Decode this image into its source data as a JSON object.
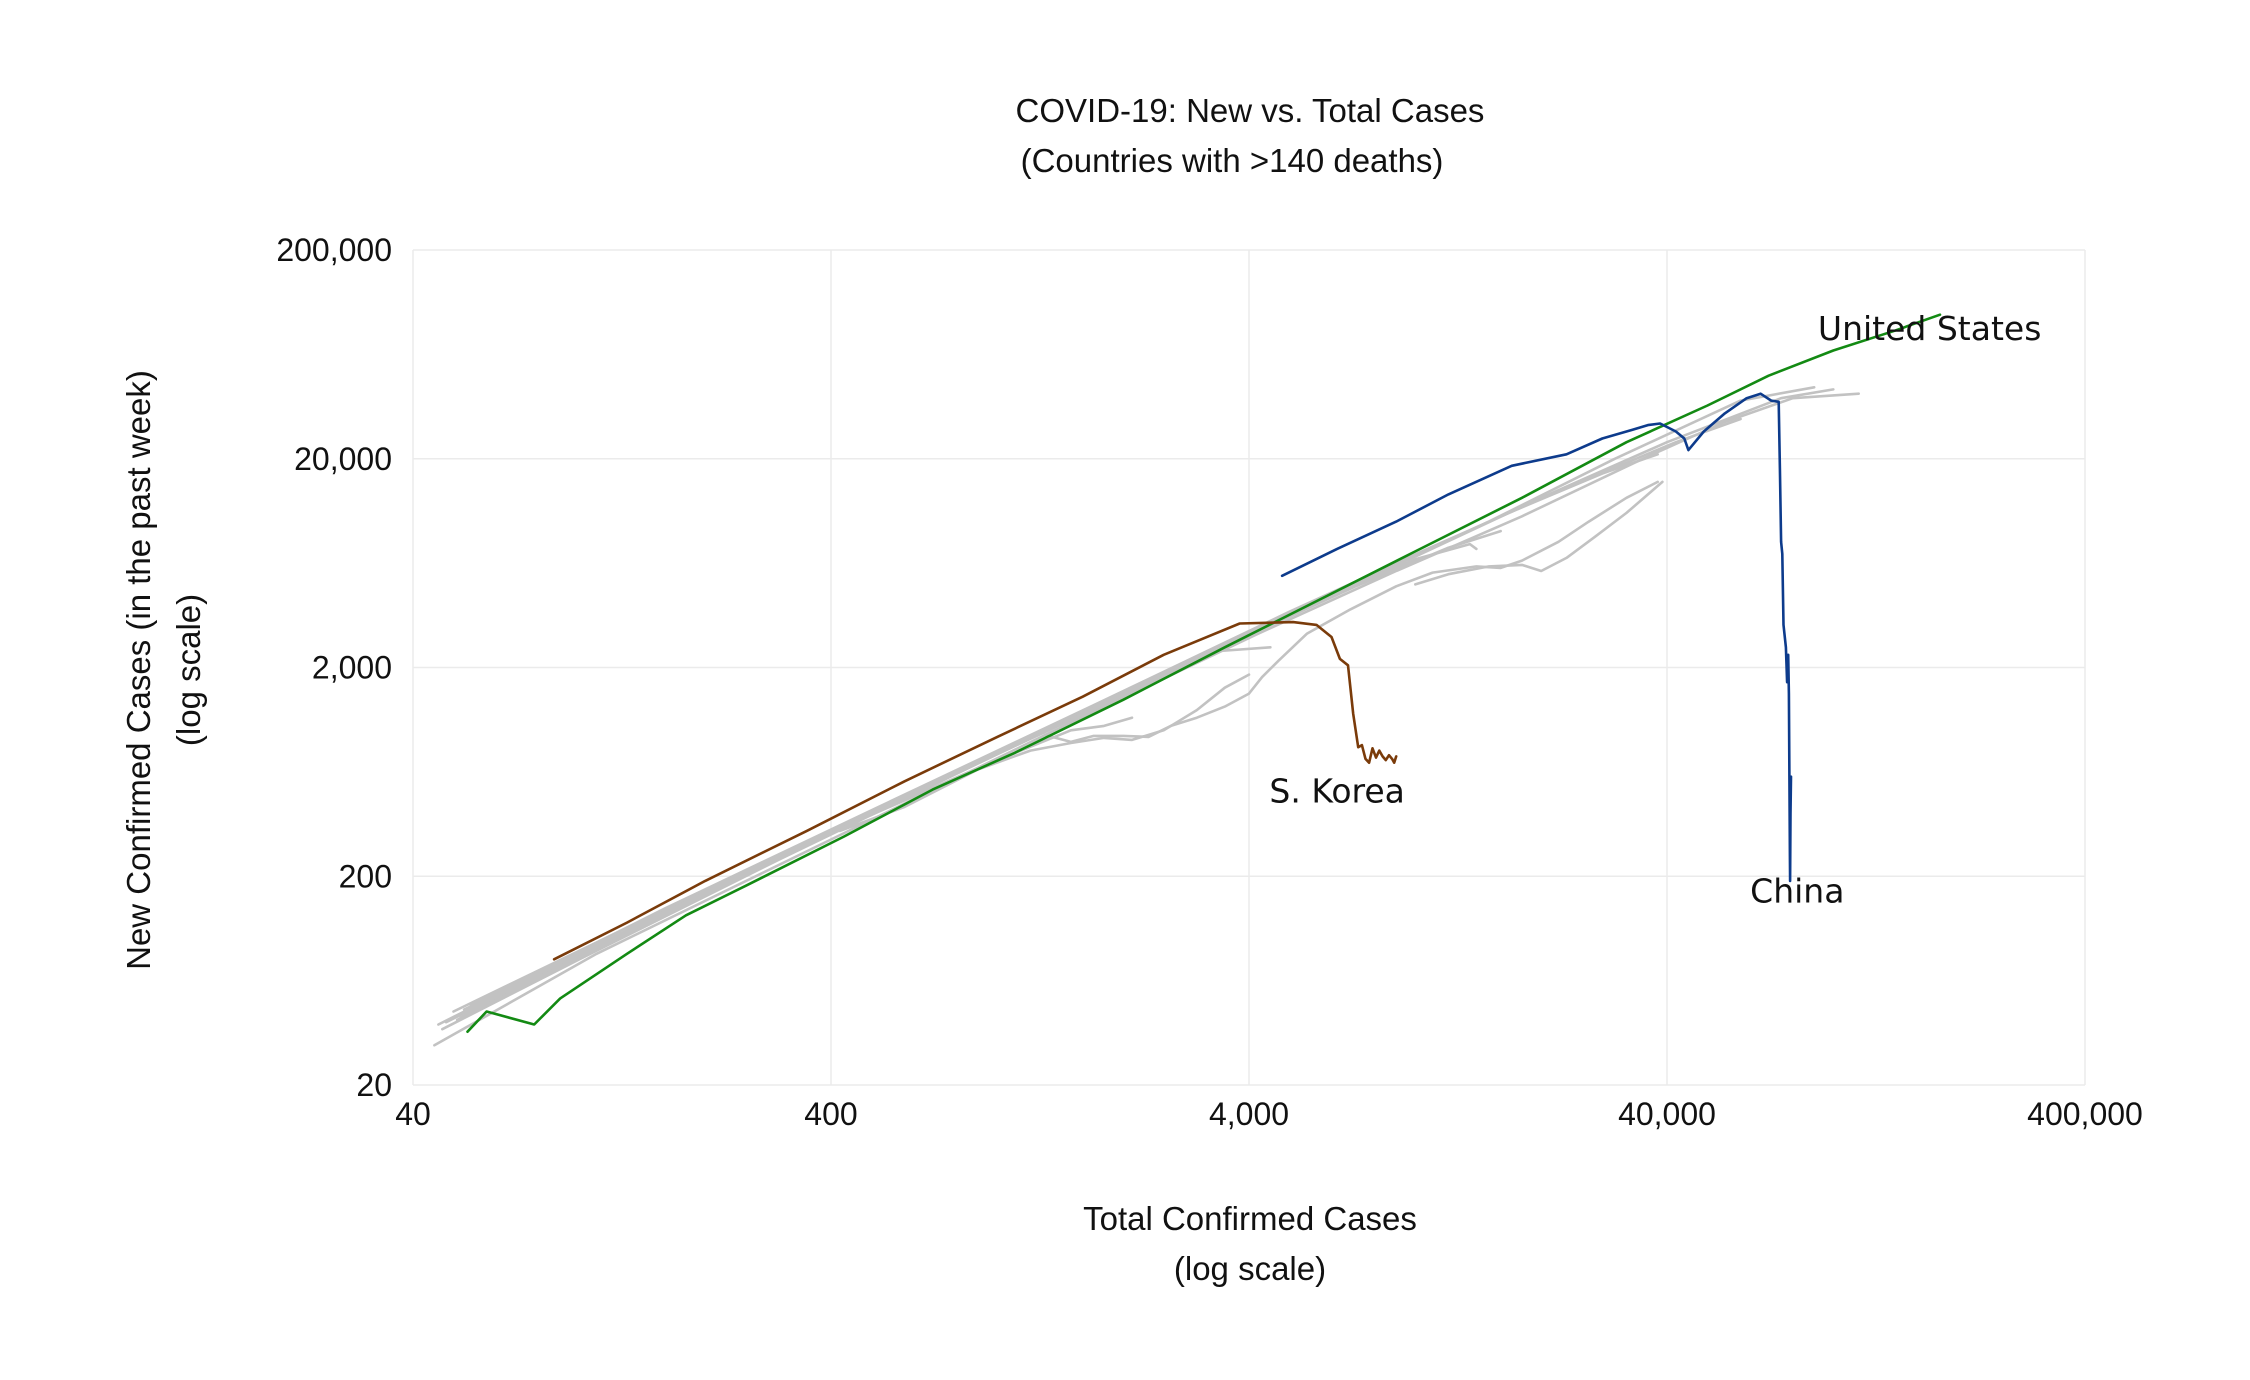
{
  "chart_data": {
    "type": "line",
    "title": "COVID-19: New vs. Total Cases",
    "subtitle": "(Countries with >140 deaths)",
    "xlabel": "Total Confirmed Cases",
    "xlabel_note": "(log scale)",
    "ylabel": "New Confirmed Cases (in the past week)",
    "ylabel_note": "(log scale)",
    "x_scale": "log",
    "y_scale": "log",
    "xlim": [
      40,
      400000
    ],
    "ylim": [
      20,
      200000
    ],
    "x_ticks": [
      {
        "value": 40,
        "label": "40"
      },
      {
        "value": 400,
        "label": "400"
      },
      {
        "value": 4000,
        "label": "4,000"
      },
      {
        "value": 40000,
        "label": "40,000"
      },
      {
        "value": 400000,
        "label": "400,000"
      }
    ],
    "y_ticks": [
      {
        "value": 20,
        "label": "20"
      },
      {
        "value": 200,
        "label": "200"
      },
      {
        "value": 2000,
        "label": "2,000"
      },
      {
        "value": 20000,
        "label": "20,000"
      },
      {
        "value": 200000,
        "label": "200,000"
      }
    ],
    "grid": true,
    "legend": "none",
    "colors": {
      "United States": "#138a13",
      "China": "#0d3b8c",
      "S. Korea": "#7a3b0a",
      "other": "#c2c2c2"
    },
    "series": [
      {
        "name": "United States",
        "label_value": {
          "x": 170000,
          "y": 74000
        },
        "points": [
          [
            54,
            36
          ],
          [
            60,
            45
          ],
          [
            78,
            39
          ],
          [
            90,
            52
          ],
          [
            130,
            85
          ],
          [
            180,
            130
          ],
          [
            250,
            180
          ],
          [
            430,
            310
          ],
          [
            700,
            520
          ],
          [
            1100,
            780
          ],
          [
            2000,
            1400
          ],
          [
            3500,
            2500
          ],
          [
            6000,
            4300
          ],
          [
            10000,
            7200
          ],
          [
            18000,
            13000
          ],
          [
            32000,
            24000
          ],
          [
            50000,
            36000
          ],
          [
            70000,
            50000
          ],
          [
            100000,
            66000
          ],
          [
            140000,
            82000
          ],
          [
            180000,
            98000
          ]
        ]
      },
      {
        "name": "China",
        "label_value": {
          "x": 82000,
          "y": 150
        },
        "points": [
          [
            4800,
            5500
          ],
          [
            6500,
            7400
          ],
          [
            9000,
            10000
          ],
          [
            12000,
            13500
          ],
          [
            17000,
            18500
          ],
          [
            23000,
            21000
          ],
          [
            28000,
            25000
          ],
          [
            33000,
            27500
          ],
          [
            36000,
            29000
          ],
          [
            38500,
            29500
          ],
          [
            42000,
            27000
          ],
          [
            44000,
            25000
          ],
          [
            45000,
            22000
          ],
          [
            49000,
            27000
          ],
          [
            55000,
            33000
          ],
          [
            62000,
            39000
          ],
          [
            67000,
            41000
          ],
          [
            71000,
            38000
          ],
          [
            74000,
            37500
          ],
          [
            74500,
            18000
          ],
          [
            75000,
            8000
          ],
          [
            75500,
            7000
          ],
          [
            76000,
            3200
          ],
          [
            77000,
            2500
          ],
          [
            77500,
            1700
          ],
          [
            78000,
            2300
          ],
          [
            78300,
            1500
          ],
          [
            78500,
            600
          ],
          [
            78700,
            250
          ],
          [
            78800,
            190
          ],
          [
            79000,
            400
          ],
          [
            79200,
            600
          ]
        ]
      },
      {
        "name": "S. Korea",
        "label_value": {
          "x": 6500,
          "y": 450
        },
        "points": [
          [
            87,
            80
          ],
          [
            130,
            120
          ],
          [
            200,
            190
          ],
          [
            350,
            330
          ],
          [
            600,
            570
          ],
          [
            1000,
            930
          ],
          [
            1600,
            1450
          ],
          [
            2500,
            2300
          ],
          [
            3800,
            3250
          ],
          [
            5100,
            3300
          ],
          [
            5800,
            3200
          ],
          [
            6300,
            2800
          ],
          [
            6600,
            2200
          ],
          [
            6900,
            2050
          ],
          [
            7100,
            1200
          ],
          [
            7300,
            830
          ],
          [
            7450,
            850
          ],
          [
            7600,
            730
          ],
          [
            7750,
            700
          ],
          [
            7900,
            820
          ],
          [
            8050,
            740
          ],
          [
            8200,
            800
          ],
          [
            8350,
            750
          ],
          [
            8500,
            720
          ],
          [
            8650,
            760
          ],
          [
            8800,
            730
          ],
          [
            8900,
            700
          ],
          [
            9000,
            750
          ]
        ]
      },
      {
        "group": "other",
        "points": [
          [
            47,
            37
          ],
          [
            100,
            80
          ],
          [
            300,
            240
          ],
          [
            1000,
            770
          ],
          [
            3000,
            2200
          ],
          [
            6500,
            4600
          ],
          [
            15000,
            10000
          ],
          [
            30000,
            20000
          ],
          [
            60000,
            38000
          ],
          [
            90000,
            44000
          ]
        ]
      },
      {
        "group": "other",
        "points": [
          [
            50,
            45
          ],
          [
            150,
            130
          ],
          [
            500,
            410
          ],
          [
            1500,
            1150
          ],
          [
            4000,
            2950
          ],
          [
            10000,
            6800
          ],
          [
            20000,
            13000
          ],
          [
            40000,
            24000
          ],
          [
            75000,
            39000
          ],
          [
            100000,
            43000
          ]
        ]
      },
      {
        "group": "other",
        "points": [
          [
            45,
            31
          ],
          [
            110,
            85
          ],
          [
            400,
            300
          ],
          [
            1300,
            950
          ],
          [
            4200,
            2900
          ],
          [
            9000,
            5800
          ],
          [
            18000,
            10600
          ],
          [
            35000,
            20000
          ],
          [
            55000,
            30000
          ],
          [
            80000,
            39000
          ],
          [
            115000,
            41000
          ]
        ]
      },
      {
        "group": "other",
        "points": [
          [
            55,
            48
          ],
          [
            160,
            140
          ],
          [
            520,
            430
          ],
          [
            1700,
            1320
          ],
          [
            5000,
            3700
          ],
          [
            11000,
            7600
          ],
          [
            22000,
            14000
          ],
          [
            42000,
            24000
          ],
          [
            60000,
            31000
          ]
        ]
      },
      {
        "group": "other",
        "points": [
          [
            48,
            40
          ],
          [
            120,
            100
          ],
          [
            400,
            330
          ],
          [
            1200,
            930
          ],
          [
            3500,
            2600
          ],
          [
            8000,
            5600
          ],
          [
            16000,
            10600
          ],
          [
            28000,
            17000
          ],
          [
            38000,
            21000
          ]
        ]
      },
      {
        "group": "other",
        "points": [
          [
            52,
            42
          ],
          [
            130,
            108
          ],
          [
            430,
            350
          ],
          [
            1250,
            950
          ],
          [
            3600,
            2600
          ],
          [
            7200,
            4900
          ],
          [
            12000,
            7500
          ],
          [
            16000,
            9000
          ]
        ]
      },
      {
        "group": "other",
        "points": [
          [
            46,
            39
          ],
          [
            100,
            85
          ],
          [
            350,
            290
          ],
          [
            1000,
            770
          ],
          [
            2500,
            1800
          ],
          [
            5500,
            3900
          ],
          [
            10000,
            6600
          ],
          [
            13500,
            7800
          ],
          [
            14000,
            7400
          ]
        ]
      },
      {
        "group": "other",
        "points": [
          [
            51,
            41
          ],
          [
            140,
            115
          ],
          [
            450,
            360
          ],
          [
            1100,
            840
          ],
          [
            2200,
            1600
          ],
          [
            3400,
            2400
          ],
          [
            4500,
            2500
          ]
        ]
      },
      {
        "group": "other",
        "points": [
          [
            53,
            46
          ],
          [
            145,
            122
          ],
          [
            480,
            380
          ],
          [
            900,
            660
          ],
          [
            1500,
            1000
          ],
          [
            1800,
            1050
          ],
          [
            2100,
            1150
          ]
        ]
      },
      {
        "group": "other",
        "points": [
          [
            420,
            330
          ],
          [
            600,
            430
          ],
          [
            900,
            650
          ],
          [
            1200,
            800
          ],
          [
            1500,
            870
          ],
          [
            1800,
            920
          ],
          [
            2100,
            900
          ],
          [
            2500,
            1000
          ],
          [
            3000,
            1250
          ],
          [
            3500,
            1600
          ],
          [
            4000,
            1850
          ]
        ]
      },
      {
        "group": "other",
        "points": [
          [
            1300,
            950
          ],
          [
            1500,
            880
          ],
          [
            1700,
            940
          ],
          [
            2000,
            940
          ],
          [
            2300,
            930
          ],
          [
            2600,
            1050
          ],
          [
            3000,
            1150
          ],
          [
            3500,
            1300
          ],
          [
            4000,
            1500
          ],
          [
            4300,
            1800
          ],
          [
            4700,
            2150
          ],
          [
            5500,
            2900
          ],
          [
            7000,
            3800
          ],
          [
            9000,
            4900
          ],
          [
            11000,
            5700
          ],
          [
            14000,
            6100
          ],
          [
            16000,
            6000
          ],
          [
            18000,
            6500
          ],
          [
            22000,
            8000
          ],
          [
            26000,
            10000
          ],
          [
            32000,
            13000
          ],
          [
            38000,
            15500
          ]
        ]
      },
      {
        "group": "other",
        "points": [
          [
            10000,
            5000
          ],
          [
            12000,
            5600
          ],
          [
            15000,
            6100
          ],
          [
            18000,
            6200
          ],
          [
            20000,
            5800
          ],
          [
            23000,
            6700
          ],
          [
            27000,
            8500
          ],
          [
            32000,
            11000
          ],
          [
            39000,
            15500
          ]
        ]
      }
    ]
  }
}
